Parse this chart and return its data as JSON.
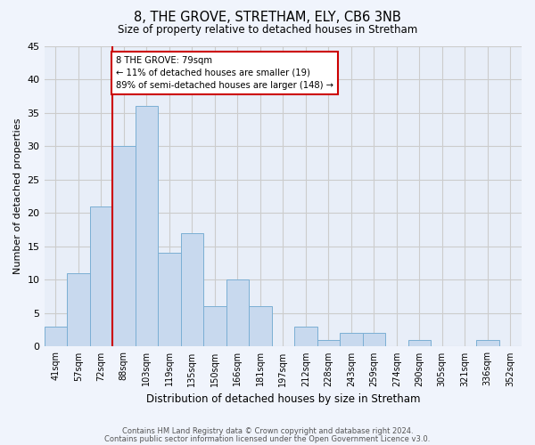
{
  "title": "8, THE GROVE, STRETHAM, ELY, CB6 3NB",
  "subtitle": "Size of property relative to detached houses in Stretham",
  "xlabel": "Distribution of detached houses by size in Stretham",
  "ylabel": "Number of detached properties",
  "categories": [
    "41sqm",
    "57sqm",
    "72sqm",
    "88sqm",
    "103sqm",
    "119sqm",
    "135sqm",
    "150sqm",
    "166sqm",
    "181sqm",
    "197sqm",
    "212sqm",
    "228sqm",
    "243sqm",
    "259sqm",
    "274sqm",
    "290sqm",
    "305sqm",
    "321sqm",
    "336sqm",
    "352sqm"
  ],
  "values": [
    3,
    11,
    21,
    30,
    36,
    14,
    17,
    6,
    10,
    6,
    0,
    3,
    1,
    2,
    2,
    0,
    1,
    0,
    0,
    1,
    0
  ],
  "bar_color": "#c8d9ee",
  "bar_edge_color": "#7bafd4",
  "vline_color": "#cc0000",
  "annotation_line1": "8 THE GROVE: 79sqm",
  "annotation_line2": "← 11% of detached houses are smaller (19)",
  "annotation_line3": "89% of semi-detached houses are larger (148) →",
  "annotation_box_color": "#ffffff",
  "annotation_box_edge": "#cc0000",
  "ylim": [
    0,
    45
  ],
  "yticks": [
    0,
    5,
    10,
    15,
    20,
    25,
    30,
    35,
    40,
    45
  ],
  "grid_color": "#cccccc",
  "bg_color": "#f0f4fc",
  "plot_bg_color": "#e8eef8",
  "footer1": "Contains HM Land Registry data © Crown copyright and database right 2024.",
  "footer2": "Contains public sector information licensed under the Open Government Licence v3.0."
}
